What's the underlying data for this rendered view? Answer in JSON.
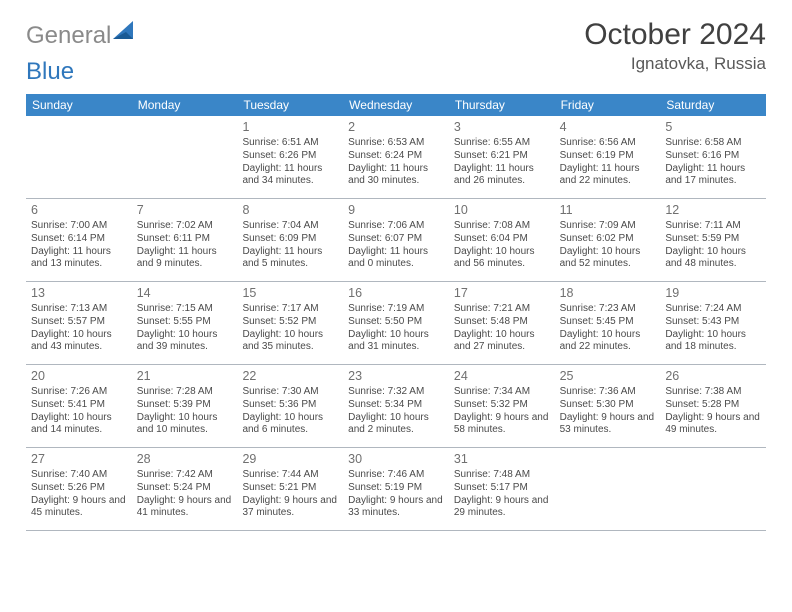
{
  "brand": {
    "part1": "General",
    "part2": "Blue",
    "gray": "#8a8a8a",
    "blue": "#2f77bc"
  },
  "title": "October 2024",
  "location": "Ignatovka, Russia",
  "colors": {
    "header_bg": "#3a86c8",
    "header_text": "#ffffff",
    "daynum": "#707070",
    "text": "#4a4a4a",
    "border": "#b0b7bf",
    "page_bg": "#ffffff"
  },
  "weekdays": [
    "Sunday",
    "Monday",
    "Tuesday",
    "Wednesday",
    "Thursday",
    "Friday",
    "Saturday"
  ],
  "grid": [
    [
      {
        "n": "",
        "lines": []
      },
      {
        "n": "",
        "lines": []
      },
      {
        "n": "1",
        "lines": [
          "Sunrise: 6:51 AM",
          "Sunset: 6:26 PM",
          "Daylight: 11 hours and 34 minutes."
        ]
      },
      {
        "n": "2",
        "lines": [
          "Sunrise: 6:53 AM",
          "Sunset: 6:24 PM",
          "Daylight: 11 hours and 30 minutes."
        ]
      },
      {
        "n": "3",
        "lines": [
          "Sunrise: 6:55 AM",
          "Sunset: 6:21 PM",
          "Daylight: 11 hours and 26 minutes."
        ]
      },
      {
        "n": "4",
        "lines": [
          "Sunrise: 6:56 AM",
          "Sunset: 6:19 PM",
          "Daylight: 11 hours and 22 minutes."
        ]
      },
      {
        "n": "5",
        "lines": [
          "Sunrise: 6:58 AM",
          "Sunset: 6:16 PM",
          "Daylight: 11 hours and 17 minutes."
        ]
      }
    ],
    [
      {
        "n": "6",
        "lines": [
          "Sunrise: 7:00 AM",
          "Sunset: 6:14 PM",
          "Daylight: 11 hours and 13 minutes."
        ]
      },
      {
        "n": "7",
        "lines": [
          "Sunrise: 7:02 AM",
          "Sunset: 6:11 PM",
          "Daylight: 11 hours and 9 minutes."
        ]
      },
      {
        "n": "8",
        "lines": [
          "Sunrise: 7:04 AM",
          "Sunset: 6:09 PM",
          "Daylight: 11 hours and 5 minutes."
        ]
      },
      {
        "n": "9",
        "lines": [
          "Sunrise: 7:06 AM",
          "Sunset: 6:07 PM",
          "Daylight: 11 hours and 0 minutes."
        ]
      },
      {
        "n": "10",
        "lines": [
          "Sunrise: 7:08 AM",
          "Sunset: 6:04 PM",
          "Daylight: 10 hours and 56 minutes."
        ]
      },
      {
        "n": "11",
        "lines": [
          "Sunrise: 7:09 AM",
          "Sunset: 6:02 PM",
          "Daylight: 10 hours and 52 minutes."
        ]
      },
      {
        "n": "12",
        "lines": [
          "Sunrise: 7:11 AM",
          "Sunset: 5:59 PM",
          "Daylight: 10 hours and 48 minutes."
        ]
      }
    ],
    [
      {
        "n": "13",
        "lines": [
          "Sunrise: 7:13 AM",
          "Sunset: 5:57 PM",
          "Daylight: 10 hours and 43 minutes."
        ]
      },
      {
        "n": "14",
        "lines": [
          "Sunrise: 7:15 AM",
          "Sunset: 5:55 PM",
          "Daylight: 10 hours and 39 minutes."
        ]
      },
      {
        "n": "15",
        "lines": [
          "Sunrise: 7:17 AM",
          "Sunset: 5:52 PM",
          "Daylight: 10 hours and 35 minutes."
        ]
      },
      {
        "n": "16",
        "lines": [
          "Sunrise: 7:19 AM",
          "Sunset: 5:50 PM",
          "Daylight: 10 hours and 31 minutes."
        ]
      },
      {
        "n": "17",
        "lines": [
          "Sunrise: 7:21 AM",
          "Sunset: 5:48 PM",
          "Daylight: 10 hours and 27 minutes."
        ]
      },
      {
        "n": "18",
        "lines": [
          "Sunrise: 7:23 AM",
          "Sunset: 5:45 PM",
          "Daylight: 10 hours and 22 minutes."
        ]
      },
      {
        "n": "19",
        "lines": [
          "Sunrise: 7:24 AM",
          "Sunset: 5:43 PM",
          "Daylight: 10 hours and 18 minutes."
        ]
      }
    ],
    [
      {
        "n": "20",
        "lines": [
          "Sunrise: 7:26 AM",
          "Sunset: 5:41 PM",
          "Daylight: 10 hours and 14 minutes."
        ]
      },
      {
        "n": "21",
        "lines": [
          "Sunrise: 7:28 AM",
          "Sunset: 5:39 PM",
          "Daylight: 10 hours and 10 minutes."
        ]
      },
      {
        "n": "22",
        "lines": [
          "Sunrise: 7:30 AM",
          "Sunset: 5:36 PM",
          "Daylight: 10 hours and 6 minutes."
        ]
      },
      {
        "n": "23",
        "lines": [
          "Sunrise: 7:32 AM",
          "Sunset: 5:34 PM",
          "Daylight: 10 hours and 2 minutes."
        ]
      },
      {
        "n": "24",
        "lines": [
          "Sunrise: 7:34 AM",
          "Sunset: 5:32 PM",
          "Daylight: 9 hours and 58 minutes."
        ]
      },
      {
        "n": "25",
        "lines": [
          "Sunrise: 7:36 AM",
          "Sunset: 5:30 PM",
          "Daylight: 9 hours and 53 minutes."
        ]
      },
      {
        "n": "26",
        "lines": [
          "Sunrise: 7:38 AM",
          "Sunset: 5:28 PM",
          "Daylight: 9 hours and 49 minutes."
        ]
      }
    ],
    [
      {
        "n": "27",
        "lines": [
          "Sunrise: 7:40 AM",
          "Sunset: 5:26 PM",
          "Daylight: 9 hours and 45 minutes."
        ]
      },
      {
        "n": "28",
        "lines": [
          "Sunrise: 7:42 AM",
          "Sunset: 5:24 PM",
          "Daylight: 9 hours and 41 minutes."
        ]
      },
      {
        "n": "29",
        "lines": [
          "Sunrise: 7:44 AM",
          "Sunset: 5:21 PM",
          "Daylight: 9 hours and 37 minutes."
        ]
      },
      {
        "n": "30",
        "lines": [
          "Sunrise: 7:46 AM",
          "Sunset: 5:19 PM",
          "Daylight: 9 hours and 33 minutes."
        ]
      },
      {
        "n": "31",
        "lines": [
          "Sunrise: 7:48 AM",
          "Sunset: 5:17 PM",
          "Daylight: 9 hours and 29 minutes."
        ]
      },
      {
        "n": "",
        "lines": []
      },
      {
        "n": "",
        "lines": []
      }
    ]
  ]
}
